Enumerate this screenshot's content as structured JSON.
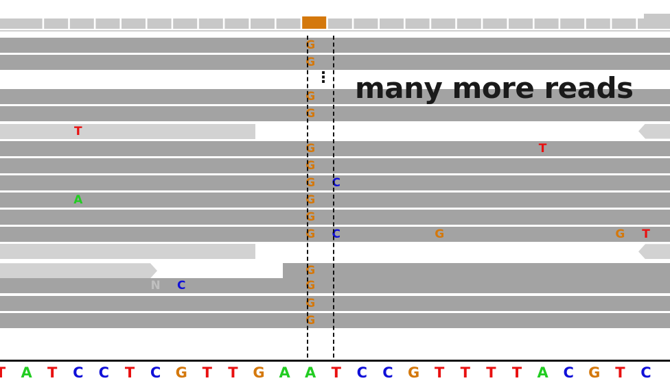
{
  "annotation": {
    "text": "many more reads",
    "ellipsis": "⋮"
  },
  "colors": {
    "read": "#a3a3a3",
    "read_soft": "#d2d2d2",
    "coverage_bar": "#c8c8c8",
    "coverage_highlight": "#d4780c",
    "base_A": "#22cc22",
    "base_C": "#1010d8",
    "base_G": "#d4780c",
    "base_T": "#e81010",
    "base_N": "#c0c0c0"
  },
  "reference_sequence": [
    "T",
    "A",
    "T",
    "C",
    "C",
    "T",
    "C",
    "G",
    "T",
    "T",
    "G",
    "A",
    "A",
    "T",
    "C",
    "C",
    "G",
    "T",
    "T",
    "T",
    "T",
    "A",
    "C",
    "G",
    "T",
    "C"
  ],
  "reads": [
    {
      "style": "full",
      "bases": [
        {
          "letter": "G",
          "locus": 12
        }
      ]
    },
    {
      "style": "full",
      "bases": [
        {
          "letter": "G",
          "locus": 12
        }
      ]
    },
    {
      "style": "gap",
      "bases": []
    },
    {
      "style": "full",
      "bases": [
        {
          "letter": "G",
          "locus": 12
        }
      ]
    },
    {
      "style": "full",
      "bases": [
        {
          "letter": "G",
          "locus": 12
        }
      ]
    },
    {
      "style": "split-light",
      "bases": [
        {
          "letter": "T",
          "locus": 3
        }
      ]
    },
    {
      "style": "full",
      "bases": [
        {
          "letter": "G",
          "locus": 12
        },
        {
          "letter": "T",
          "locus": 21
        }
      ]
    },
    {
      "style": "full",
      "bases": [
        {
          "letter": "G",
          "locus": 12
        }
      ]
    },
    {
      "style": "full",
      "bases": [
        {
          "letter": "G",
          "locus": 12
        },
        {
          "letter": "C",
          "locus": 13
        }
      ]
    },
    {
      "style": "full",
      "bases": [
        {
          "letter": "A",
          "locus": 3
        },
        {
          "letter": "G",
          "locus": 12
        }
      ]
    },
    {
      "style": "full",
      "bases": [
        {
          "letter": "G",
          "locus": 12
        }
      ]
    },
    {
      "style": "full",
      "bases": [
        {
          "letter": "G",
          "locus": 12
        },
        {
          "letter": "C",
          "locus": 13
        },
        {
          "letter": "G",
          "locus": 17
        },
        {
          "letter": "G",
          "locus": 24
        },
        {
          "letter": "T",
          "locus": 25
        }
      ]
    },
    {
      "style": "split-light",
      "bases": []
    },
    {
      "style": "split-arrow",
      "bases": [
        {
          "letter": "G",
          "locus": 12
        }
      ]
    },
    {
      "style": "full",
      "bases": [
        {
          "letter": "N",
          "locus": 6
        },
        {
          "letter": "C",
          "locus": 7
        },
        {
          "letter": "G",
          "locus": 12
        }
      ]
    },
    {
      "style": "full",
      "bases": [
        {
          "letter": "G",
          "locus": 12
        }
      ]
    },
    {
      "style": "full",
      "bases": [
        {
          "letter": "G",
          "locus": 12
        }
      ]
    }
  ]
}
